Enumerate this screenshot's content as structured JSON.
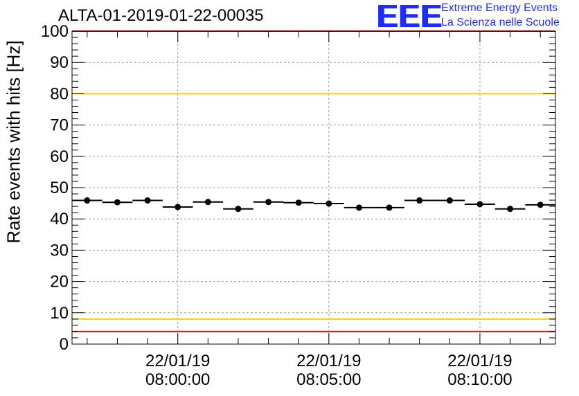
{
  "title": "ALTA-01-2019-01-22-00035",
  "logo": {
    "mark": "EEE",
    "line1": "Extreme Energy Events",
    "line2": "La Scienza nelle Scuole",
    "color": "#1f2bff"
  },
  "chart_data": {
    "type": "scatter",
    "title": "ALTA-01-2019-01-22-00035",
    "xlabel": "",
    "ylabel": "Rate events with hits [Hz]",
    "ylim": [
      0,
      100
    ],
    "yticks": [
      0,
      10,
      20,
      30,
      40,
      50,
      60,
      70,
      80,
      90,
      100
    ],
    "x_time_start": "07:56:30",
    "x_time_end": "08:12:30",
    "xticks": [
      {
        "date": "22/01/19",
        "time": "08:00:00"
      },
      {
        "date": "22/01/19",
        "time": "08:05:00"
      },
      {
        "date": "22/01/19",
        "time": "08:10:00"
      }
    ],
    "bin_width_s": 60,
    "x": [
      "07:57:00",
      "07:58:00",
      "07:59:00",
      "08:00:00",
      "08:01:00",
      "08:02:00",
      "08:03:00",
      "08:04:00",
      "08:05:00",
      "08:06:00",
      "08:07:00",
      "08:08:00",
      "08:09:00",
      "08:10:00",
      "08:11:00",
      "08:12:00"
    ],
    "values": [
      45.9,
      45.3,
      45.9,
      43.8,
      45.4,
      43.2,
      45.4,
      45.2,
      44.9,
      43.6,
      43.6,
      45.9,
      45.9,
      44.7,
      43.2,
      44.5
    ],
    "reference_lines": [
      {
        "value": 100,
        "color": "#ff0000"
      },
      {
        "value": 80,
        "color": "#ffcc00"
      },
      {
        "value": 8,
        "color": "#ffcc00"
      },
      {
        "value": 4,
        "color": "#ff0000"
      }
    ],
    "grid": true
  }
}
